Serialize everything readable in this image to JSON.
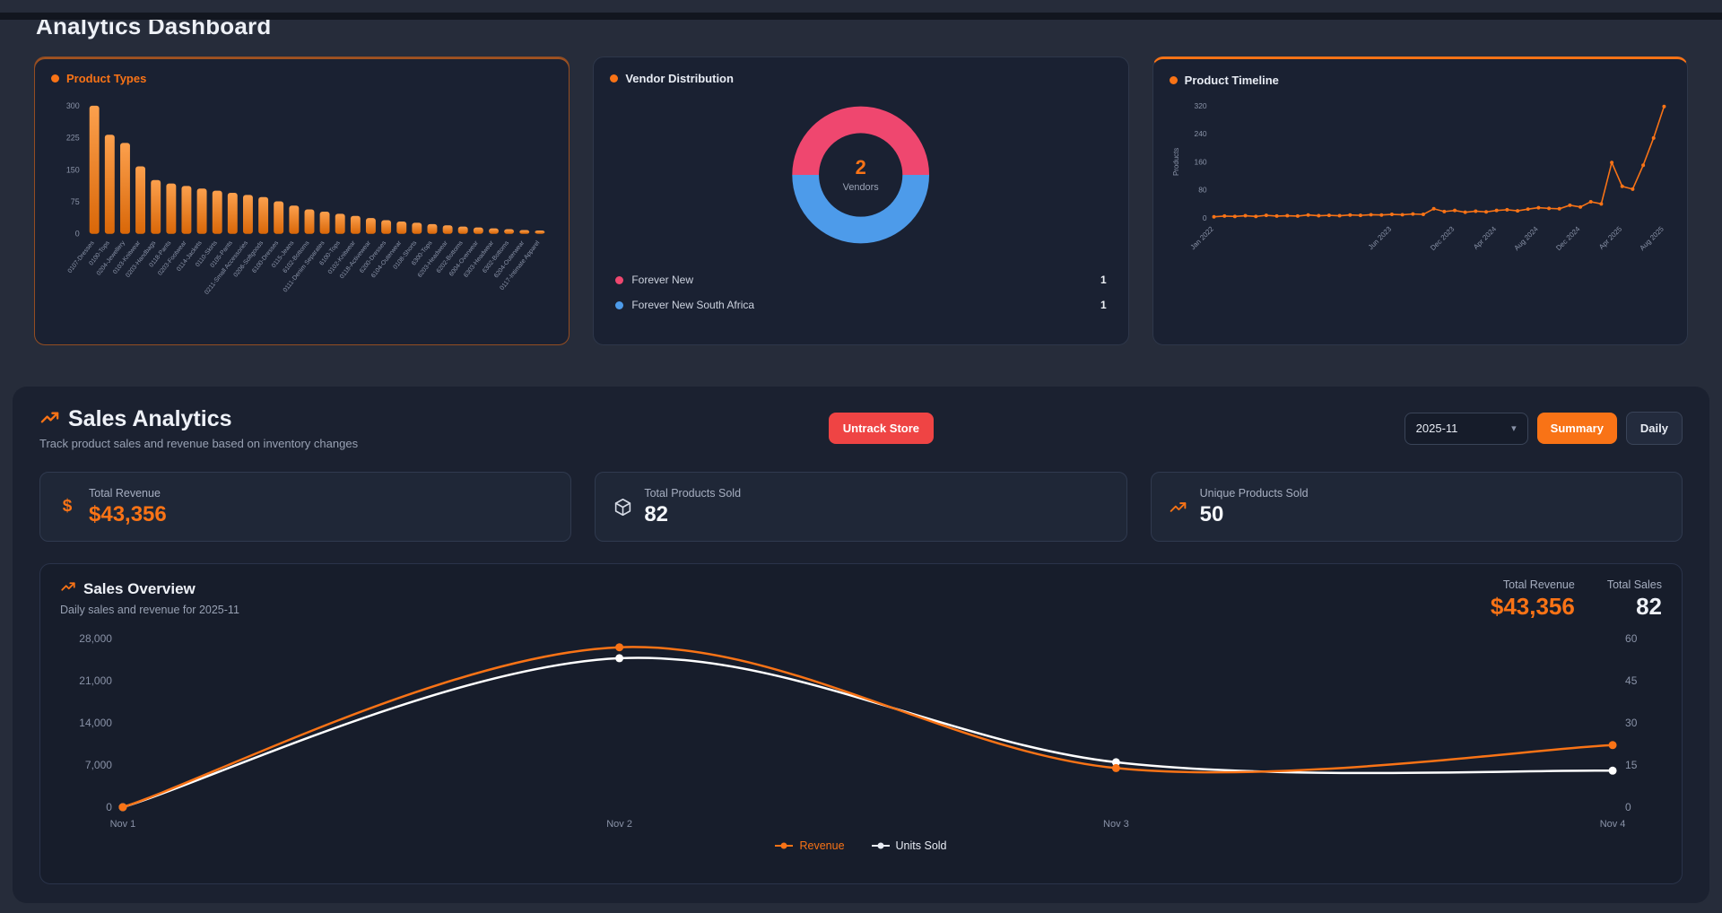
{
  "page": {
    "title": "Analytics Dashboard"
  },
  "colors": {
    "accent": "#f97316",
    "danger": "#ef4444",
    "pink": "#ef476f",
    "blue": "#4d9bea"
  },
  "product_types_card": {
    "title": "Product Types"
  },
  "vendor_card": {
    "title": "Vendor Distribution",
    "center_value": "2",
    "center_label": "Vendors",
    "legend": [
      {
        "name": "Forever New",
        "value": "1",
        "color": "#ef476f"
      },
      {
        "name": "Forever New South Africa",
        "value": "1",
        "color": "#4d9bea"
      }
    ]
  },
  "timeline_card": {
    "title": "Product Timeline",
    "y_label": "Products"
  },
  "sales": {
    "title": "Sales Analytics",
    "subtitle": "Track product sales and revenue based on inventory changes",
    "untrack_button": "Untrack Store",
    "month_select": "2025-11",
    "view_buttons": {
      "summary": "Summary",
      "daily": "Daily"
    },
    "stats": [
      {
        "label": "Total Revenue",
        "value": "$43,356"
      },
      {
        "label": "Total Products Sold",
        "value": "82"
      },
      {
        "label": "Unique Products Sold",
        "value": "50"
      }
    ],
    "overview": {
      "title": "Sales Overview",
      "subtitle": "Daily sales and revenue for 2025-11",
      "total_revenue_label": "Total Revenue",
      "total_revenue_value": "$43,356",
      "total_sales_label": "Total Sales",
      "total_sales_value": "82",
      "legend": [
        {
          "name": "Revenue",
          "color": "#f97316"
        },
        {
          "name": "Units Sold",
          "color": "#e8ecf4"
        }
      ]
    }
  },
  "chart_data": [
    {
      "id": "productTypes",
      "type": "bar",
      "title": "Product Types",
      "color": "#f97316",
      "ylim": [
        0,
        300
      ],
      "yticks": [
        0,
        75,
        150,
        225,
        300
      ],
      "categories": [
        "0107-Dresses",
        "0100-Tops",
        "0204-Jewellery",
        "0103-Knitwear",
        "0203-Handbags",
        "0118-Pants",
        "0203-Footwear",
        "0114-Jackets",
        "0110-Skirts",
        "0105-Pants",
        "0211-Small Accessories",
        "0206-Softgoods",
        "6100-Dresses",
        "0115-Jeans",
        "6102-Bottoms",
        "0111-Denim Separates",
        "6100-Tops",
        "0102-Knitwear",
        "0118-Activewear",
        "6200-Dresses",
        "6104-Outerwear",
        "0108-Shorts",
        "6300-Tops",
        "6203-Headwear",
        "6202-Bottoms",
        "6004-Overwear",
        "6303-Headwear",
        "6302-Bottoms",
        "6204-Outerwear",
        "0117-Intimate Apparel"
      ],
      "values": [
        300,
        232,
        213,
        158,
        126,
        118,
        112,
        106,
        101,
        96,
        91,
        86,
        76,
        66,
        57,
        52,
        47,
        42,
        37,
        32,
        29,
        26,
        23,
        20,
        17,
        15,
        13,
        11,
        9,
        8
      ]
    },
    {
      "id": "vendorDonut",
      "type": "pie",
      "title": "Vendor Distribution",
      "labels": [
        "Forever New",
        "Forever New South Africa"
      ],
      "values": [
        1,
        1
      ],
      "colors": [
        "#ef476f",
        "#4d9bea"
      ],
      "center_text": "2",
      "center_sub": "Vendors"
    },
    {
      "id": "timeline",
      "type": "line",
      "title": "Product Timeline",
      "ylabel": "Products",
      "color": "#f97316",
      "ylim": [
        0,
        320
      ],
      "yticks": [
        0,
        80,
        160,
        240,
        320
      ],
      "ticks": [
        {
          "label": "Jan 2022",
          "pos": 0.0
        },
        {
          "label": "Jun 2023",
          "pos": 0.395
        },
        {
          "label": "Dec 2023",
          "pos": 0.535
        },
        {
          "label": "Apr 2024",
          "pos": 0.628
        },
        {
          "label": "Aug 2024",
          "pos": 0.721
        },
        {
          "label": "Dec 2024",
          "pos": 0.814
        },
        {
          "label": "Apr 2025",
          "pos": 0.907
        },
        {
          "label": "Aug 2025",
          "pos": 1.0
        }
      ],
      "values": [
        3,
        5,
        4,
        6,
        4,
        7,
        5,
        6,
        5,
        8,
        6,
        7,
        6,
        8,
        7,
        9,
        8,
        10,
        9,
        11,
        10,
        26,
        18,
        21,
        16,
        19,
        17,
        21,
        23,
        20,
        25,
        29,
        27,
        26,
        36,
        31,
        46,
        40,
        158,
        90,
        82,
        150,
        228,
        318
      ]
    },
    {
      "id": "salesOverview",
      "type": "line",
      "title": "Sales Overview",
      "x": [
        "Nov 1",
        "Nov 2",
        "Nov 3",
        "Nov 4"
      ],
      "left_ylim": [
        0,
        28000
      ],
      "left_ticks": [
        "0",
        "7,000",
        "14,000",
        "21,000",
        "28,000"
      ],
      "right_ylim": [
        0,
        60
      ],
      "right_ticks": [
        "0",
        "15",
        "30",
        "45",
        "60"
      ],
      "legend_position": "bottom",
      "series": [
        {
          "name": "Units Sold",
          "axis": "right",
          "color": "#ffffff",
          "values": [
            0,
            53,
            16,
            13
          ]
        },
        {
          "name": "Revenue",
          "axis": "left",
          "color": "#f97316",
          "values": [
            0,
            26556,
            6500,
            10300
          ]
        }
      ]
    }
  ]
}
